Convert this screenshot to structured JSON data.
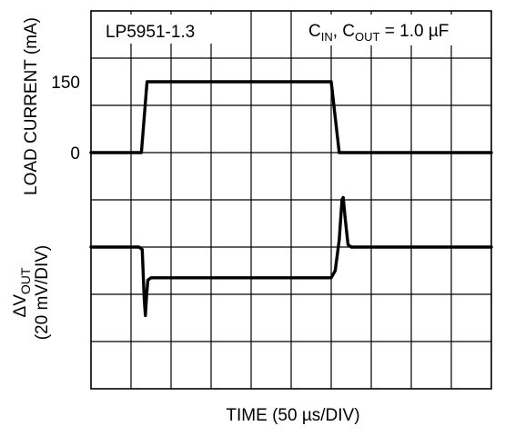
{
  "chart_data": {
    "type": "line",
    "panel_label": "LP5951-1.3",
    "condition": {
      "c1": "C",
      "c1_sub": "IN",
      "sep": ", ",
      "c2": "C",
      "c2_sub": "OUT",
      "value": " = 1.0 µF"
    },
    "ylabel_top": "LOAD CURRENT (mA)",
    "ylabel_bottom": {
      "prefix": "ΔV",
      "sub": "OUT",
      "scale": "(20 mV/DIV)"
    },
    "xlabel": "TIME (50 µs/DIV)",
    "x_divisions": 10,
    "y_divisions": 8,
    "grid": true,
    "ytick_labels": [
      {
        "label": "150",
        "div": 1.5
      },
      {
        "label": "0",
        "div": 3.0
      }
    ],
    "series": [
      {
        "points_div": [
          [
            0,
            3.0
          ],
          [
            1.26,
            3.0
          ],
          [
            1.4,
            1.5
          ],
          [
            6.0,
            1.5
          ],
          [
            6.2,
            3.0
          ],
          [
            10,
            3.0
          ]
        ]
      },
      {
        "points_div": [
          [
            0,
            5.0
          ],
          [
            1.2,
            5.0
          ],
          [
            1.28,
            5.05
          ],
          [
            1.33,
            6.1
          ],
          [
            1.36,
            6.45
          ],
          [
            1.39,
            6.0
          ],
          [
            1.42,
            5.7
          ],
          [
            1.5,
            5.65
          ],
          [
            1.7,
            5.65
          ],
          [
            6.0,
            5.65
          ],
          [
            6.1,
            5.5
          ],
          [
            6.2,
            4.85
          ],
          [
            6.27,
            4.0
          ],
          [
            6.3,
            3.95
          ],
          [
            6.35,
            4.4
          ],
          [
            6.42,
            4.95
          ],
          [
            6.5,
            5.0
          ],
          [
            10,
            5.0
          ]
        ]
      }
    ]
  }
}
